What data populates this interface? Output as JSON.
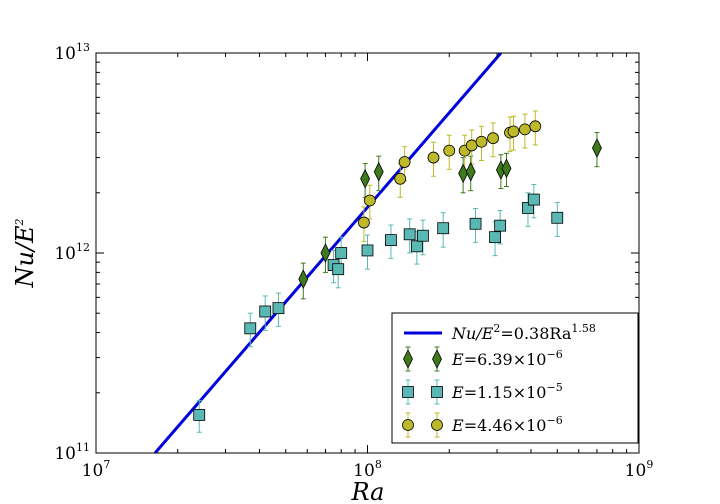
{
  "chart_data": {
    "type": "scatter",
    "xscale": "log",
    "yscale": "log",
    "xlabel_base": "Ra",
    "ylabel_parts": {
      "base": "Nu/E",
      "exp": "2"
    },
    "xlim": [
      10000000,
      1000000000
    ],
    "ylim": [
      100000000000,
      10000000000000
    ],
    "x_ticks": [
      {
        "base": "10",
        "exp": "7",
        "value": 10000000
      },
      {
        "base": "10",
        "exp": "8",
        "value": 100000000
      },
      {
        "base": "10",
        "exp": "9",
        "value": 1000000000
      }
    ],
    "y_ticks": [
      {
        "base": "10",
        "exp": "11",
        "value": 100000000000
      },
      {
        "base": "10",
        "exp": "12",
        "value": 1000000000000
      },
      {
        "base": "10",
        "exp": "13",
        "value": 10000000000000
      }
    ],
    "fit_line": {
      "prefix": "Nu/E",
      "prefix_exp": "2",
      "middle": "=0.38Ra",
      "exp": "1.58",
      "coefficient": 0.38,
      "exponent": 1.58,
      "color": "#0000dd",
      "x_range": [
        16500000,
        310000000
      ],
      "y_at_range": [
        100000000000,
        10000000000000
      ]
    },
    "series": [
      {
        "name": "E=6.39x10^-6",
        "label_lhs": "E",
        "label_rhs": "=6.39×10",
        "label_exp": "−6",
        "marker": "diamond",
        "color": "#3d7a1c",
        "points": [
          {
            "x": 58000000,
            "y": 740000000000,
            "err": 150000000000
          },
          {
            "x": 70000000,
            "y": 1000000000000,
            "err": 200000000000
          },
          {
            "x": 98000000,
            "y": 2350000000000,
            "err": 450000000000
          },
          {
            "x": 110000000,
            "y": 2550000000000,
            "err": 500000000000
          },
          {
            "x": 225000000,
            "y": 2500000000000,
            "err": 500000000000
          },
          {
            "x": 240000000,
            "y": 2550000000000,
            "err": 500000000000
          },
          {
            "x": 310000000,
            "y": 2600000000000,
            "err": 500000000000
          },
          {
            "x": 325000000,
            "y": 2650000000000,
            "err": 500000000000
          },
          {
            "x": 700000000,
            "y": 3350000000000,
            "err": 650000000000
          }
        ]
      },
      {
        "name": "E=1.15x10^-5",
        "label_lhs": "E",
        "label_rhs": "=1.15×10",
        "label_exp": "−5",
        "marker": "square",
        "color": "#5ab8b4",
        "points": [
          {
            "x": 24000000,
            "y": 155000000000,
            "err": 28000000000
          },
          {
            "x": 37000000,
            "y": 420000000000,
            "err": 80000000000
          },
          {
            "x": 42000000,
            "y": 510000000000,
            "err": 100000000000
          },
          {
            "x": 47000000,
            "y": 530000000000,
            "err": 100000000000
          },
          {
            "x": 75000000,
            "y": 870000000000,
            "err": 160000000000
          },
          {
            "x": 78000000,
            "y": 830000000000,
            "err": 160000000000
          },
          {
            "x": 80000000,
            "y": 1000000000000,
            "err": 200000000000
          },
          {
            "x": 100000000,
            "y": 1030000000000,
            "err": 200000000000
          },
          {
            "x": 122000000,
            "y": 1160000000000,
            "err": 220000000000
          },
          {
            "x": 143000000,
            "y": 1240000000000,
            "err": 240000000000
          },
          {
            "x": 152000000,
            "y": 1080000000000,
            "err": 200000000000
          },
          {
            "x": 160000000,
            "y": 1220000000000,
            "err": 240000000000
          },
          {
            "x": 190000000,
            "y": 1330000000000,
            "err": 260000000000
          },
          {
            "x": 250000000,
            "y": 1400000000000,
            "err": 270000000000
          },
          {
            "x": 295000000,
            "y": 1200000000000,
            "err": 230000000000
          },
          {
            "x": 308000000,
            "y": 1370000000000,
            "err": 260000000000
          },
          {
            "x": 390000000,
            "y": 1680000000000,
            "err": 320000000000
          },
          {
            "x": 410000000,
            "y": 1850000000000,
            "err": 350000000000
          },
          {
            "x": 500000000,
            "y": 1500000000000,
            "err": 290000000000
          }
        ]
      },
      {
        "name": "E=4.46x10^-6",
        "label_lhs": "E",
        "label_rhs": "=4.46×10",
        "label_exp": "−6",
        "marker": "circle",
        "color": "#bdb92a",
        "points": [
          {
            "x": 97000000,
            "y": 1420000000000,
            "err": 280000000000
          },
          {
            "x": 102000000,
            "y": 1830000000000,
            "err": 350000000000
          },
          {
            "x": 132000000,
            "y": 2350000000000,
            "err": 450000000000
          },
          {
            "x": 137000000,
            "y": 2850000000000,
            "err": 550000000000
          },
          {
            "x": 175000000,
            "y": 3000000000000,
            "err": 580000000000
          },
          {
            "x": 200000000,
            "y": 3250000000000,
            "err": 630000000000
          },
          {
            "x": 228000000,
            "y": 3250000000000,
            "err": 630000000000
          },
          {
            "x": 242000000,
            "y": 3450000000000,
            "err": 670000000000
          },
          {
            "x": 263000000,
            "y": 3600000000000,
            "err": 700000000000
          },
          {
            "x": 290000000,
            "y": 3750000000000,
            "err": 720000000000
          },
          {
            "x": 335000000,
            "y": 4000000000000,
            "err": 780000000000
          },
          {
            "x": 345000000,
            "y": 4050000000000,
            "err": 780000000000
          },
          {
            "x": 380000000,
            "y": 4150000000000,
            "err": 800000000000
          },
          {
            "x": 415000000,
            "y": 4300000000000,
            "err": 830000000000
          }
        ]
      }
    ],
    "legend_position": "lower-right",
    "grid": false
  }
}
